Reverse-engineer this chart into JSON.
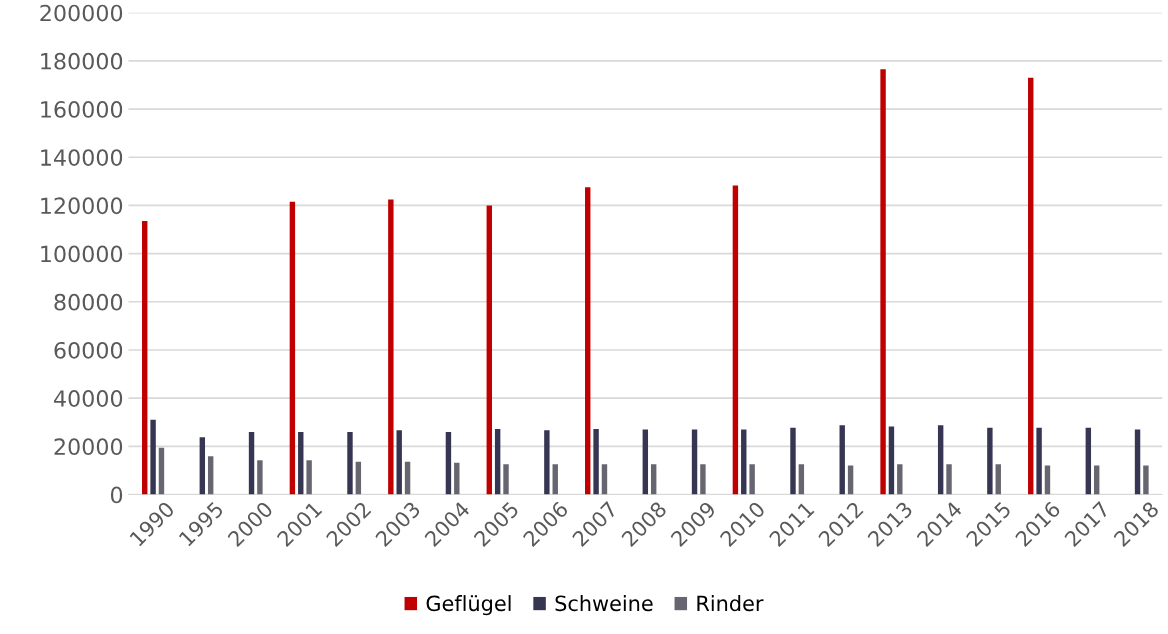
{
  "chart_data": {
    "type": "bar",
    "categories": [
      "1990",
      "1995",
      "2000",
      "2001",
      "2002",
      "2003",
      "2004",
      "2005",
      "2006",
      "2007",
      "2008",
      "2009",
      "2010",
      "2011",
      "2012",
      "2013",
      "2014",
      "2015",
      "2016",
      "2017",
      "2018"
    ],
    "series": [
      {
        "name": "Geflügel",
        "color": "#c00000",
        "values": [
          113500,
          null,
          null,
          121500,
          null,
          122500,
          null,
          120000,
          null,
          127500,
          null,
          null,
          128300,
          null,
          null,
          176500,
          null,
          null,
          173000,
          null,
          null
        ]
      },
      {
        "name": "Schweine",
        "color": "#363652",
        "values": [
          31000,
          23800,
          26000,
          26000,
          26000,
          26700,
          26000,
          27200,
          26700,
          27200,
          27000,
          27000,
          27000,
          27700,
          28800,
          28200,
          28800,
          27700,
          27700,
          27700,
          27000
        ]
      },
      {
        "name": "Rinder",
        "color": "#67656f",
        "values": [
          19400,
          15900,
          14200,
          14200,
          13600,
          13600,
          13200,
          12600,
          12600,
          12600,
          12600,
          12600,
          12600,
          12600,
          12000,
          12600,
          12600,
          12600,
          12000,
          12000,
          12000
        ]
      }
    ],
    "ylim": [
      0,
      200000
    ],
    "yticks": [
      0,
      20000,
      40000,
      60000,
      80000,
      100000,
      120000,
      140000,
      160000,
      180000,
      200000
    ],
    "grid": "y",
    "legend": "bottom"
  }
}
